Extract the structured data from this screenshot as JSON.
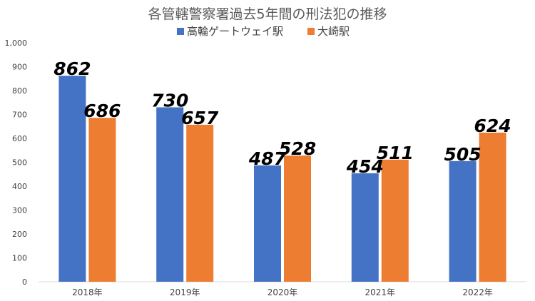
{
  "chart_data": {
    "type": "bar",
    "title": "各管轄警察署過去5年間の刑法犯の推移",
    "categories": [
      "2018年",
      "2019年",
      "2020年",
      "2021年",
      "2022年"
    ],
    "series": [
      {
        "name": "高輪ゲートウェイ駅",
        "color": "#4472C4",
        "values": [
          862,
          730,
          487,
          454,
          505
        ]
      },
      {
        "name": "大崎駅",
        "color": "#ED7D31",
        "values": [
          686,
          657,
          528,
          511,
          624
        ]
      }
    ],
    "ylim": [
      0,
      1000
    ],
    "yticks": [
      "0",
      "100",
      "200",
      "300",
      "400",
      "500",
      "600",
      "700",
      "800",
      "900",
      "1,000"
    ],
    "xlabel": "",
    "ylabel": "",
    "grid": false,
    "legend": "top",
    "data_labels": true
  }
}
